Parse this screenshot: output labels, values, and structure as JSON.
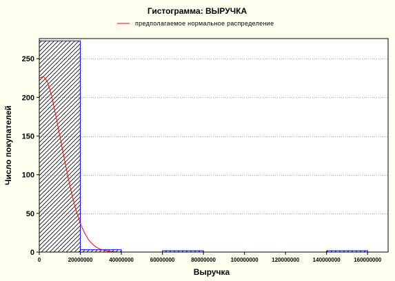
{
  "chart_data": {
    "type": "bar",
    "title": "Гистограмма: ВЫРУЧКА",
    "xlabel": "Выручка",
    "ylabel": "Число покупателей",
    "legend": {
      "label": "предполагаемое нормальное распределение",
      "placement": "top-center",
      "line_color": "#ff0000"
    },
    "colors": {
      "background": "#fffff0",
      "plot_background": "#ffffff",
      "bar_edge": "#0000ff",
      "bar_hatch": "#000000",
      "curve": "#ff0000"
    },
    "xlim": [
      0,
      170000000
    ],
    "ylim": [
      0,
      276
    ],
    "grid": true,
    "x_tick_values": [
      0,
      20000000,
      40000000,
      60000000,
      80000000,
      100000000,
      120000000,
      140000000,
      160000000
    ],
    "x_tick_labels": [
      "0",
      "20000000",
      "40000000",
      "60000000",
      "80000000",
      "100000000",
      "120000000",
      "140000000",
      "160000000"
    ],
    "y_tick_values": [
      0,
      50,
      100,
      150,
      200,
      250
    ],
    "y_tick_labels": [
      "0",
      "50",
      "100",
      "150",
      "200",
      "250"
    ],
    "bins": [
      {
        "x0": 0,
        "x1": 20000000,
        "value": 273
      },
      {
        "x0": 20000000,
        "x1": 40000000,
        "value": 3
      },
      {
        "x0": 40000000,
        "x1": 60000000,
        "value": 0
      },
      {
        "x0": 60000000,
        "x1": 80000000,
        "value": 1
      },
      {
        "x0": 80000000,
        "x1": 100000000,
        "value": 0
      },
      {
        "x0": 100000000,
        "x1": 120000000,
        "value": 0
      },
      {
        "x0": 120000000,
        "x1": 140000000,
        "value": 0
      },
      {
        "x0": 140000000,
        "x1": 160000000,
        "value": 1
      }
    ],
    "normal_curve": {
      "x": [
        0,
        2000000,
        4000000,
        6000000,
        8000000,
        10000000,
        12000000,
        14000000,
        16000000,
        18000000,
        20000000,
        22000000,
        24000000,
        26000000,
        28000000,
        30000000,
        32000000,
        34000000,
        36000000,
        38000000,
        40000000
      ],
      "y": [
        225,
        227,
        220,
        202,
        177,
        150,
        123,
        97,
        73,
        53,
        37,
        25,
        16,
        10,
        6,
        3.5,
        2,
        1,
        0.5,
        0.2,
        0
      ]
    }
  }
}
